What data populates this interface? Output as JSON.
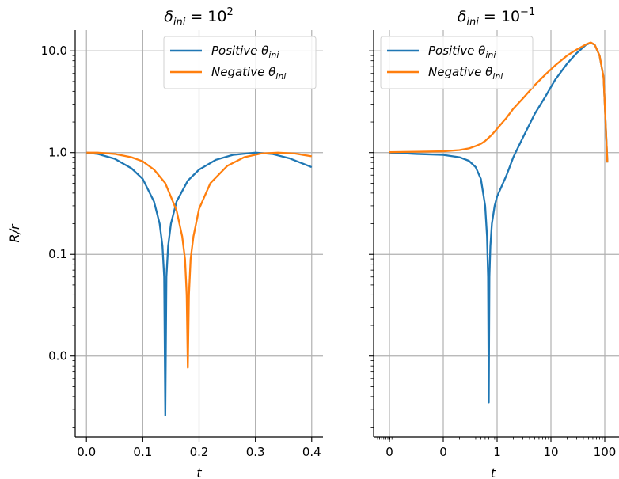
{
  "chart_data": [
    {
      "type": "line",
      "title": "δ_ini = 10^2",
      "title_parts": {
        "delta": "δ",
        "sub": "ini",
        "eq": " = 10",
        "sup": "2"
      },
      "xlabel": "t",
      "ylabel": "R/r",
      "x_scale": "linear",
      "y_scale": "log",
      "xlim": [
        -0.02,
        0.42
      ],
      "ylim": [
        0.0016,
        16
      ],
      "xticks": [
        0.0,
        0.1,
        0.2,
        0.3,
        0.4
      ],
      "xtick_labels": [
        "0.0",
        "0.1",
        "0.2",
        "0.3",
        "0.4"
      ],
      "yticks": [
        0.01,
        0.1,
        1.0,
        10.0
      ],
      "ytick_labels": [
        "0.0",
        "0.1",
        "1.0",
        "10.0"
      ],
      "grid": true,
      "legend": "top-right",
      "series": [
        {
          "name": "Positive θ_ini",
          "label_parts": {
            "main": "Positive θ",
            "sub": "ini"
          },
          "color": "#1f77b4",
          "x": [
            0.0,
            0.02,
            0.05,
            0.08,
            0.1,
            0.12,
            0.13,
            0.135,
            0.138,
            0.14,
            0.142,
            0.145,
            0.15,
            0.16,
            0.18,
            0.2,
            0.23,
            0.26,
            0.3,
            0.33,
            0.36,
            0.4
          ],
          "y": [
            1.0,
            0.97,
            0.87,
            0.7,
            0.55,
            0.33,
            0.2,
            0.12,
            0.06,
            0.0026,
            0.06,
            0.12,
            0.2,
            0.33,
            0.53,
            0.68,
            0.85,
            0.95,
            1.0,
            0.97,
            0.88,
            0.72
          ]
        },
        {
          "name": "Negative θ_ini",
          "label_parts": {
            "main": "Negative θ",
            "sub": "ini"
          },
          "color": "#ff7f0e",
          "x": [
            0.0,
            0.02,
            0.05,
            0.08,
            0.1,
            0.12,
            0.14,
            0.16,
            0.17,
            0.175,
            0.178,
            0.18,
            0.182,
            0.185,
            0.19,
            0.2,
            0.22,
            0.25,
            0.28,
            0.31,
            0.34,
            0.37,
            0.4
          ],
          "y": [
            1.0,
            1.0,
            0.97,
            0.9,
            0.82,
            0.68,
            0.5,
            0.27,
            0.15,
            0.09,
            0.04,
            0.0077,
            0.04,
            0.09,
            0.15,
            0.28,
            0.5,
            0.74,
            0.9,
            0.98,
            1.0,
            0.98,
            0.92
          ]
        }
      ]
    },
    {
      "type": "line",
      "title": "δ_ini = 10^-1",
      "title_parts": {
        "delta": "δ",
        "sub": "ini",
        "eq": " = 10",
        "sup": "−1"
      },
      "xlabel": "t",
      "ylabel": "",
      "x_scale": "symlog",
      "y_scale": "log",
      "xlim": [
        -0.3,
        130
      ],
      "ylim": [
        0.0016,
        16
      ],
      "xticks": [
        0.0,
        0.1,
        1,
        10,
        100
      ],
      "xtick_labels": [
        "0",
        "0",
        "1",
        "10",
        "100"
      ],
      "yticks": [
        0.01,
        0.1,
        1.0,
        10.0
      ],
      "ytick_labels": [
        "",
        "",
        "",
        ""
      ],
      "grid": true,
      "legend": "top-left",
      "series": [
        {
          "name": "Positive θ_ini",
          "label_parts": {
            "main": "Positive θ",
            "sub": "ini"
          },
          "color": "#1f77b4",
          "x": [
            0.0,
            0.02,
            0.05,
            0.1,
            0.2,
            0.3,
            0.4,
            0.5,
            0.6,
            0.65,
            0.68,
            0.7,
            0.72,
            0.75,
            0.8,
            0.9,
            1.0,
            1.5,
            2,
            3,
            5,
            8,
            12,
            20,
            30,
            45,
            55,
            65,
            80,
            95,
            105
          ],
          "y": [
            1.0,
            0.99,
            0.97,
            0.95,
            0.9,
            0.83,
            0.72,
            0.55,
            0.3,
            0.15,
            0.06,
            0.0035,
            0.06,
            0.12,
            0.2,
            0.3,
            0.37,
            0.6,
            0.9,
            1.4,
            2.4,
            3.6,
            5.2,
            7.5,
            9.5,
            11.5,
            12.0,
            11.5,
            9.0,
            5.5,
            0.8
          ]
        },
        {
          "name": "Negative θ_ini",
          "label_parts": {
            "main": "Negative θ",
            "sub": "ini"
          },
          "color": "#ff7f0e",
          "x": [
            0.0,
            0.05,
            0.1,
            0.2,
            0.3,
            0.4,
            0.5,
            0.6,
            0.8,
            1.0,
            1.5,
            2,
            3,
            5,
            8,
            12,
            20,
            30,
            45,
            55,
            65,
            80,
            95,
            105
          ],
          "y": [
            1.01,
            1.02,
            1.03,
            1.06,
            1.1,
            1.16,
            1.22,
            1.3,
            1.5,
            1.72,
            2.2,
            2.7,
            3.4,
            4.6,
            5.9,
            7.2,
            9.0,
            10.3,
            11.6,
            12.1,
            11.5,
            9.0,
            5.5,
            0.8
          ]
        }
      ]
    }
  ]
}
